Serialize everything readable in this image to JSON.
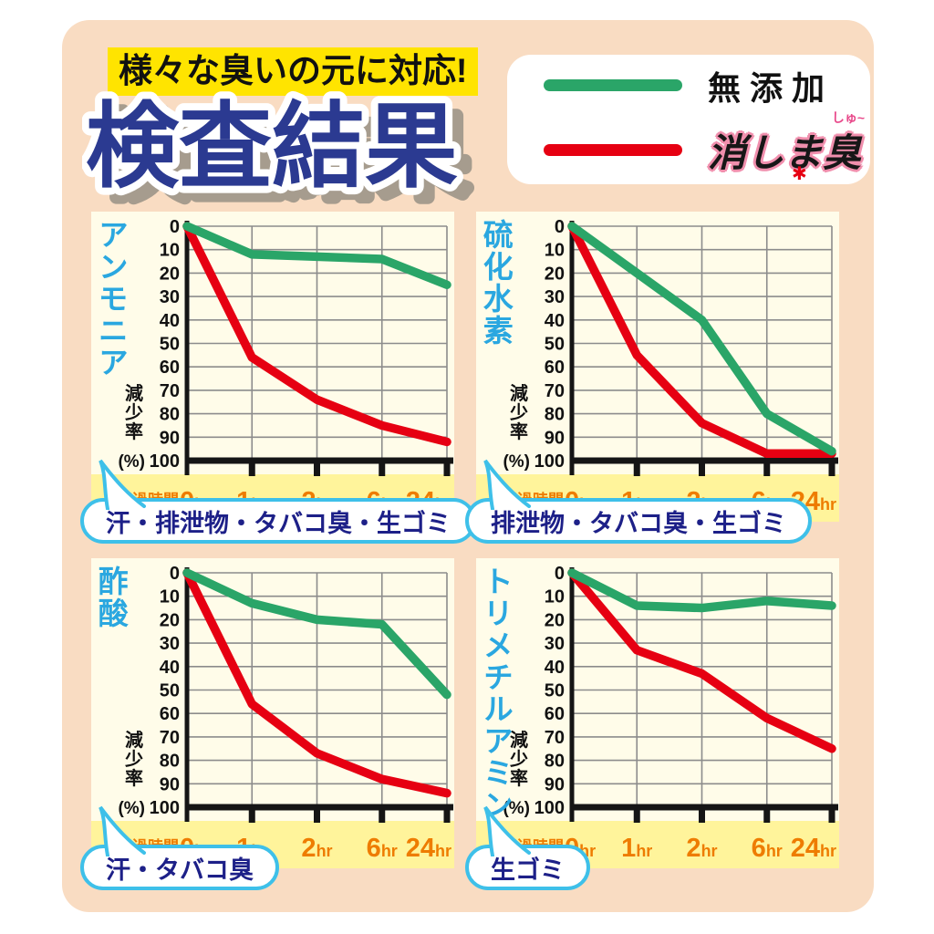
{
  "header": {
    "banner": "様々な臭いの元に対応!",
    "title": "検査結果"
  },
  "legend": {
    "items": [
      {
        "label": "無添加",
        "color": "#2aa568"
      },
      {
        "label": "消しま臭",
        "ruby": "しゅ~",
        "star": "✱",
        "color": "#e60012"
      }
    ]
  },
  "axis": {
    "x_label": "経過時間",
    "y_label_vertical": "減少率",
    "y_unit": "(%)",
    "y_min": 0,
    "y_max": 100,
    "y_step": 10,
    "y_inverted": true
  },
  "colors": {
    "strip": "#fff49b",
    "orange": "#ee7c00",
    "grid": "#8c8c8c",
    "axis": "#151515",
    "panel": "#f9dcc2",
    "chart_bg": "#fffce9",
    "bubble_border": "#3ec0e9",
    "bubble_text": "#1d2088",
    "chart_title": "#2aa7e0",
    "big_title": "#2b3a91",
    "banner_bg": "#ffe400"
  },
  "chart_data": [
    {
      "type": "line",
      "title": "アンモニア",
      "categories": [
        "0hr",
        "1hr",
        "2hr",
        "6hr",
        "24hr"
      ],
      "xlabel": "経過時間",
      "ylabel": "減少率(%)",
      "ylim": [
        0,
        100
      ],
      "y_inverted": true,
      "grid": true,
      "series": [
        {
          "name": "無添加",
          "color": "#2aa568",
          "values": [
            0,
            12,
            13,
            14,
            25
          ]
        },
        {
          "name": "消しま臭",
          "color": "#e60012",
          "values": [
            0,
            56,
            74,
            85,
            92
          ]
        }
      ],
      "bubble": "汗・排泄物・タバコ臭・生ゴミ"
    },
    {
      "type": "line",
      "title": "硫化水素",
      "categories": [
        "0hr",
        "1hr",
        "2hr",
        "6hr",
        "24hr"
      ],
      "xlabel": "経過時間",
      "ylabel": "減少率(%)",
      "ylim": [
        0,
        100
      ],
      "y_inverted": true,
      "grid": true,
      "series": [
        {
          "name": "無添加",
          "color": "#2aa568",
          "values": [
            0,
            20,
            40,
            80,
            96
          ]
        },
        {
          "name": "消しま臭",
          "color": "#e60012",
          "values": [
            0,
            55,
            84,
            97,
            97
          ]
        }
      ],
      "bubble": "排泄物・タバコ臭・生ゴミ"
    },
    {
      "type": "line",
      "title": "酢酸",
      "categories": [
        "0hr",
        "1hr",
        "2hr",
        "6hr",
        "24hr"
      ],
      "xlabel": "経過時間",
      "ylabel": "減少率(%)",
      "ylim": [
        0,
        100
      ],
      "y_inverted": true,
      "grid": true,
      "series": [
        {
          "name": "無添加",
          "color": "#2aa568",
          "values": [
            0,
            13,
            20,
            22,
            52
          ]
        },
        {
          "name": "消しま臭",
          "color": "#e60012",
          "values": [
            0,
            56,
            77,
            88,
            94
          ]
        }
      ],
      "bubble": "汗・タバコ臭"
    },
    {
      "type": "line",
      "title": "トリメチルアミン",
      "categories": [
        "0hr",
        "1hr",
        "2hr",
        "6hr",
        "24hr"
      ],
      "xlabel": "経過時間",
      "ylabel": "減少率(%)",
      "ylim": [
        0,
        100
      ],
      "y_inverted": true,
      "grid": true,
      "series": [
        {
          "name": "無添加",
          "color": "#2aa568",
          "values": [
            0,
            14,
            15,
            12,
            14
          ]
        },
        {
          "name": "消しま臭",
          "color": "#e60012",
          "values": [
            0,
            33,
            43,
            62,
            75
          ]
        }
      ],
      "bubble": "生ゴミ"
    }
  ]
}
